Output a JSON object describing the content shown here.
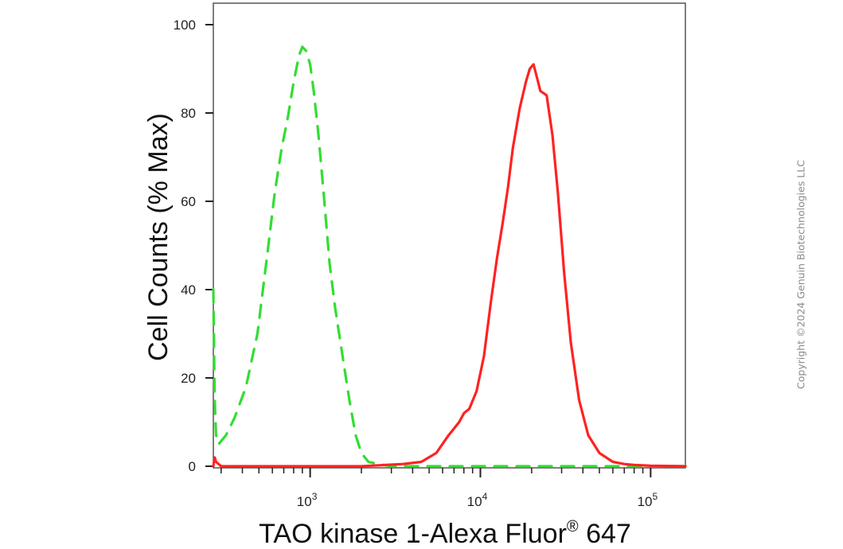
{
  "chart_data": {
    "type": "line",
    "xlabel": "TAO kinase 1-Alexa Fluor",
    "xlabel_superscript": "®",
    "xlabel_suffix": " 647",
    "ylabel": "Cell Counts (% Max)",
    "x_scale": "log",
    "xlim": [
      270,
      160000
    ],
    "ylim": [
      0,
      100
    ],
    "yticks": [
      0,
      20,
      40,
      60,
      80,
      100
    ],
    "xticks": [
      {
        "value": 1000,
        "base": "10",
        "exp": "3"
      },
      {
        "value": 10000,
        "base": "10",
        "exp": "4"
      },
      {
        "value": 100000,
        "base": "10",
        "exp": "5"
      }
    ],
    "grid": false,
    "series": [
      {
        "color": "#33dd33",
        "style": "dashed",
        "x": [
          270,
          272,
          275,
          280,
          290,
          320,
          360,
          420,
          490,
          560,
          620,
          680,
          740,
          800,
          860,
          900,
          950,
          1000,
          1050,
          1120,
          1200,
          1300,
          1400,
          1550,
          1700,
          1850,
          2000,
          2200,
          2500,
          3000,
          5000,
          10000,
          30000,
          80000,
          160000
        ],
        "y": [
          40,
          30,
          15,
          7,
          5,
          7,
          11,
          18,
          30,
          48,
          62,
          72,
          79,
          87,
          93,
          95,
          94,
          91,
          85,
          75,
          62,
          46,
          36,
          25,
          15,
          7,
          3,
          1,
          0.5,
          0,
          0,
          0,
          0,
          0,
          0
        ]
      },
      {
        "color": "#ff2222",
        "style": "solid",
        "x": [
          270,
          275,
          280,
          290,
          300,
          350,
          500,
          1000,
          2000,
          3500,
          4500,
          5500,
          6500,
          7500,
          8000,
          8600,
          9500,
          10500,
          11500,
          12500,
          13500,
          14500,
          15500,
          17000,
          18500,
          19500,
          20500,
          21500,
          22500,
          24500,
          26500,
          28500,
          31000,
          34000,
          38000,
          43000,
          50000,
          60000,
          70000,
          80000,
          100000,
          160000
        ],
        "y": [
          0,
          2,
          1,
          0.5,
          0,
          0,
          0,
          0,
          0,
          0.5,
          1,
          3,
          7,
          10,
          12,
          13,
          17,
          25,
          37,
          47,
          55,
          63,
          72,
          81,
          87,
          90,
          91,
          88,
          85,
          84,
          75,
          62,
          44,
          28,
          15,
          7,
          3,
          1,
          0.5,
          0.3,
          0.1,
          0
        ]
      }
    ]
  },
  "watermark": {
    "text": "Copyright ©2024 Genuin Biotechnologies LLC"
  }
}
